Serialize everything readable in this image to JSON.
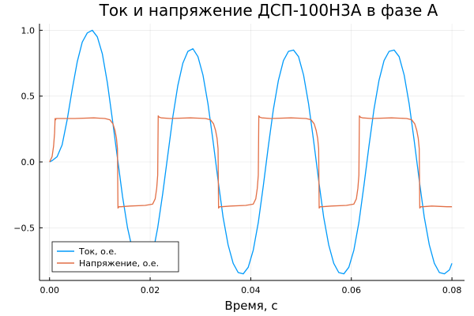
{
  "chart_data": {
    "type": "line",
    "title": "Ток и напряжение ДСП-100Н3А в фазе A",
    "xlabel": "Время, с",
    "ylabel": "",
    "xlim": [
      -0.002,
      0.0825
    ],
    "ylim": [
      -0.9,
      1.05
    ],
    "xticks": [
      0.0,
      0.02,
      0.04,
      0.06,
      0.08
    ],
    "xtick_labels": [
      "0.00",
      "0.02",
      "0.04",
      "0.06",
      "0.08"
    ],
    "yticks": [
      -0.5,
      0.0,
      0.5,
      1.0
    ],
    "ytick_labels": [
      "−0.5",
      "0.0",
      "0.5",
      "1.0"
    ],
    "grid": true,
    "legend_position": "bottom-left",
    "series": [
      {
        "name": "Ток, о.е.",
        "color": "#009AFA",
        "x": [
          0.0,
          0.0005,
          0.0015,
          0.0025,
          0.0035,
          0.0045,
          0.0055,
          0.0065,
          0.0075,
          0.0085,
          0.0095,
          0.0105,
          0.0115,
          0.0125,
          0.0135,
          0.0145,
          0.0155,
          0.0165,
          0.0175,
          0.0185,
          0.0195,
          0.0205,
          0.0215,
          0.0225,
          0.0235,
          0.0245,
          0.0255,
          0.0265,
          0.0275,
          0.0285,
          0.0295,
          0.0305,
          0.0315,
          0.0325,
          0.0335,
          0.0345,
          0.0355,
          0.0365,
          0.0375,
          0.0385,
          0.0395,
          0.0405,
          0.0415,
          0.0425,
          0.0435,
          0.0445,
          0.0455,
          0.0465,
          0.0475,
          0.0485,
          0.0495,
          0.0505,
          0.0515,
          0.0525,
          0.0535,
          0.0545,
          0.0555,
          0.0565,
          0.0575,
          0.0585,
          0.0595,
          0.0605,
          0.0615,
          0.0625,
          0.0635,
          0.0645,
          0.0655,
          0.0665,
          0.0675,
          0.0685,
          0.0695,
          0.0705,
          0.0715,
          0.0725,
          0.0735,
          0.0745,
          0.0755,
          0.0765,
          0.0775,
          0.0785,
          0.0795,
          0.08
        ],
        "y": [
          0.0,
          0.01,
          0.04,
          0.13,
          0.32,
          0.55,
          0.76,
          0.91,
          0.98,
          1.0,
          0.95,
          0.82,
          0.6,
          0.32,
          0.03,
          -0.26,
          -0.5,
          -0.67,
          -0.78,
          -0.82,
          -0.8,
          -0.7,
          -0.5,
          -0.24,
          0.05,
          0.34,
          0.58,
          0.75,
          0.84,
          0.86,
          0.8,
          0.66,
          0.44,
          0.16,
          -0.14,
          -0.42,
          -0.63,
          -0.77,
          -0.84,
          -0.85,
          -0.8,
          -0.67,
          -0.46,
          -0.18,
          0.12,
          0.4,
          0.62,
          0.77,
          0.84,
          0.85,
          0.8,
          0.66,
          0.44,
          0.16,
          -0.14,
          -0.42,
          -0.63,
          -0.77,
          -0.84,
          -0.85,
          -0.8,
          -0.67,
          -0.46,
          -0.18,
          0.12,
          0.4,
          0.62,
          0.77,
          0.84,
          0.85,
          0.8,
          0.66,
          0.44,
          0.16,
          -0.14,
          -0.42,
          -0.63,
          -0.77,
          -0.84,
          -0.85,
          -0.82,
          -0.77
        ]
      },
      {
        "name": "Напряжение, о.е.",
        "color": "#E26F46",
        "x": [
          0.0,
          0.0005,
          0.0008,
          0.001,
          0.0011,
          0.0012,
          0.0013,
          0.002,
          0.005,
          0.0088,
          0.011,
          0.012,
          0.0126,
          0.013,
          0.0133,
          0.0135,
          0.0136,
          0.0138,
          0.0142,
          0.016,
          0.019,
          0.0205,
          0.021,
          0.0213,
          0.0215,
          0.0216,
          0.0218,
          0.0222,
          0.024,
          0.028,
          0.031,
          0.032,
          0.0326,
          0.033,
          0.0333,
          0.0335,
          0.0336,
          0.0338,
          0.0342,
          0.036,
          0.039,
          0.0405,
          0.041,
          0.0413,
          0.0415,
          0.0416,
          0.0418,
          0.0422,
          0.044,
          0.048,
          0.051,
          0.052,
          0.0526,
          0.053,
          0.0533,
          0.0535,
          0.0536,
          0.0538,
          0.0542,
          0.056,
          0.059,
          0.0605,
          0.061,
          0.0613,
          0.0615,
          0.0616,
          0.0618,
          0.0622,
          0.064,
          0.068,
          0.071,
          0.072,
          0.0726,
          0.073,
          0.0733,
          0.0735,
          0.0736,
          0.0738,
          0.0742,
          0.076,
          0.079,
          0.08
        ],
        "y": [
          0.0,
          0.04,
          0.12,
          0.22,
          0.33,
          0.32,
          0.33,
          0.33,
          0.33,
          0.335,
          0.33,
          0.32,
          0.29,
          0.24,
          0.18,
          0.1,
          -0.35,
          -0.34,
          -0.34,
          -0.335,
          -0.33,
          -0.32,
          -0.28,
          -0.2,
          -0.1,
          0.35,
          0.34,
          0.335,
          0.33,
          0.335,
          0.33,
          0.32,
          0.29,
          0.24,
          0.18,
          0.1,
          -0.35,
          -0.34,
          -0.34,
          -0.335,
          -0.33,
          -0.32,
          -0.28,
          -0.2,
          -0.1,
          0.35,
          0.34,
          0.335,
          0.33,
          0.335,
          0.33,
          0.32,
          0.29,
          0.24,
          0.18,
          0.1,
          -0.35,
          -0.34,
          -0.34,
          -0.335,
          -0.33,
          -0.32,
          -0.28,
          -0.2,
          -0.1,
          0.35,
          0.34,
          0.335,
          0.33,
          0.335,
          0.33,
          0.32,
          0.29,
          0.24,
          0.18,
          0.1,
          -0.35,
          -0.34,
          -0.34,
          -0.335,
          -0.34,
          -0.34
        ]
      }
    ]
  }
}
